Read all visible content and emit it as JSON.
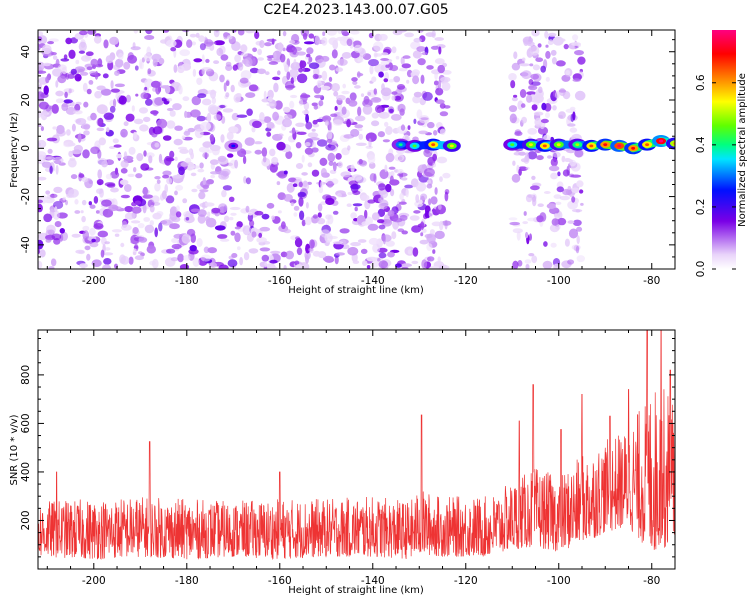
{
  "title": "C2E4.2023.143.00.07.G05",
  "chart_data": [
    {
      "type": "heatmap",
      "title": "",
      "xlabel": "Height of straight line (km)",
      "ylabel": "Frequency (Hz)",
      "xlim": [
        -212,
        -75
      ],
      "ylim": [
        -50,
        49
      ],
      "xticks": [
        -200,
        -180,
        -160,
        -140,
        -120,
        -100,
        -80
      ],
      "yticks": [
        -40,
        -20,
        0,
        20,
        40
      ],
      "colorbar": {
        "label": "Normalized spectral amplitude",
        "range": [
          0.0,
          0.77
        ],
        "ticks": [
          0.0,
          0.2,
          0.4,
          0.6
        ],
        "colormap": "rainbow (white → purple → blue → cyan → green → yellow → red → magenta)"
      },
      "bands": [
        {
          "x_range": [
            -212,
            -132
          ],
          "y_range": [
            -50,
            49
          ],
          "amplitude": "low (0.05–0.15)",
          "pattern": "dense scattered purple speckle"
        },
        {
          "x_range": [
            -131,
            -124
          ],
          "y_range": [
            -50,
            49
          ],
          "amplitude": "low (0.05–0.15)",
          "pattern": "scattered speckle column"
        },
        {
          "x_range": [
            -110,
            -95
          ],
          "y_range": [
            -50,
            49
          ],
          "amplitude": "low (0.05–0.12)",
          "pattern": "scattered speckle column"
        }
      ],
      "signal": {
        "description": "narrow band near 0 Hz",
        "points": [
          {
            "x": -170,
            "y": 1,
            "amplitude": 0.15
          },
          {
            "x": -134,
            "y": 1.5,
            "amplitude": 0.3
          },
          {
            "x": -131,
            "y": 1,
            "amplitude": 0.35
          },
          {
            "x": -127,
            "y": 1.5,
            "amplitude": 0.55
          },
          {
            "x": -123,
            "y": 1,
            "amplitude": 0.45
          },
          {
            "x": -110,
            "y": 1.5,
            "amplitude": 0.35
          },
          {
            "x": -106,
            "y": 1.5,
            "amplitude": 0.45
          },
          {
            "x": -103,
            "y": 1,
            "amplitude": 0.55
          },
          {
            "x": -100,
            "y": 1.5,
            "amplitude": 0.45
          },
          {
            "x": -96,
            "y": 1.5,
            "amplitude": 0.4
          },
          {
            "x": -93,
            "y": 1,
            "amplitude": 0.55
          },
          {
            "x": -90,
            "y": 1.5,
            "amplitude": 0.6
          },
          {
            "x": -87,
            "y": 1,
            "amplitude": 0.65
          },
          {
            "x": -84,
            "y": 0,
            "amplitude": 0.6
          },
          {
            "x": -81,
            "y": 1.5,
            "amplitude": 0.55
          },
          {
            "x": -78,
            "y": 3,
            "amplitude": 0.7
          },
          {
            "x": -75,
            "y": 2,
            "amplitude": 0.5
          }
        ]
      }
    },
    {
      "type": "line",
      "title": "",
      "xlabel": "Height of straight line (km)",
      "ylabel": "SNR (10 * v/v)",
      "xlim": [
        -212,
        -75
      ],
      "ylim": [
        0,
        985
      ],
      "xticks": [
        -200,
        -180,
        -160,
        -140,
        -120,
        -100,
        -80
      ],
      "yticks": [
        200,
        400,
        600,
        800
      ],
      "color": "#ee3333",
      "series": [
        {
          "name": "",
          "envelope": [
            {
              "x": -212,
              "low": 50,
              "high": 280
            },
            {
              "x": -200,
              "low": 40,
              "high": 290
            },
            {
              "x": -190,
              "low": 50,
              "high": 300
            },
            {
              "x": -180,
              "low": 40,
              "high": 290
            },
            {
              "x": -170,
              "low": 50,
              "high": 280
            },
            {
              "x": -160,
              "low": 40,
              "high": 290
            },
            {
              "x": -150,
              "low": 50,
              "high": 290
            },
            {
              "x": -140,
              "low": 50,
              "high": 300
            },
            {
              "x": -132,
              "low": 40,
              "high": 280
            },
            {
              "x": -130,
              "low": 60,
              "high": 330
            },
            {
              "x": -125,
              "low": 50,
              "high": 300
            },
            {
              "x": -115,
              "low": 50,
              "high": 300
            },
            {
              "x": -110,
              "low": 80,
              "high": 360
            },
            {
              "x": -105,
              "low": 90,
              "high": 420
            },
            {
              "x": -100,
              "low": 70,
              "high": 380
            },
            {
              "x": -95,
              "low": 100,
              "high": 470
            },
            {
              "x": -90,
              "low": 150,
              "high": 530
            },
            {
              "x": -85,
              "low": 170,
              "high": 580
            },
            {
              "x": -80,
              "low": 60,
              "high": 760
            },
            {
              "x": -75,
              "low": 100,
              "high": 740
            }
          ],
          "peaks": [
            {
              "x": -208,
              "y": 400
            },
            {
              "x": -188,
              "y": 525
            },
            {
              "x": -160,
              "y": 400
            },
            {
              "x": -129.5,
              "y": 635
            },
            {
              "x": -108.5,
              "y": 610
            },
            {
              "x": -105.5,
              "y": 760
            },
            {
              "x": -99.5,
              "y": 575
            },
            {
              "x": -95,
              "y": 720
            },
            {
              "x": -89,
              "y": 630
            },
            {
              "x": -85,
              "y": 740
            },
            {
              "x": -81,
              "y": 985
            },
            {
              "x": -78,
              "y": 985
            },
            {
              "x": -76,
              "y": 820
            }
          ]
        }
      ]
    }
  ]
}
